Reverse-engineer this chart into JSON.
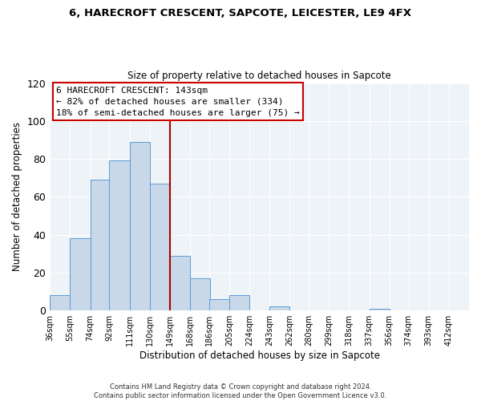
{
  "title": "6, HARECROFT CRESCENT, SAPCOTE, LEICESTER, LE9 4FX",
  "subtitle": "Size of property relative to detached houses in Sapcote",
  "xlabel": "Distribution of detached houses by size in Sapcote",
  "ylabel": "Number of detached properties",
  "bar_left_edges": [
    36,
    55,
    74,
    92,
    111,
    130,
    149,
    168,
    186,
    205,
    224,
    243,
    262,
    280,
    299,
    318,
    337,
    356,
    374,
    393
  ],
  "bar_heights": [
    8,
    38,
    69,
    79,
    89,
    67,
    29,
    17,
    6,
    8,
    0,
    2,
    0,
    0,
    0,
    0,
    1,
    0,
    0,
    0
  ],
  "bin_width": 19,
  "tick_labels": [
    "36sqm",
    "55sqm",
    "74sqm",
    "92sqm",
    "111sqm",
    "130sqm",
    "149sqm",
    "168sqm",
    "186sqm",
    "205sqm",
    "224sqm",
    "243sqm",
    "262sqm",
    "280sqm",
    "299sqm",
    "318sqm",
    "337sqm",
    "356sqm",
    "374sqm",
    "393sqm",
    "412sqm"
  ],
  "tick_positions": [
    36,
    55,
    74,
    92,
    111,
    130,
    149,
    168,
    186,
    205,
    224,
    243,
    262,
    280,
    299,
    318,
    337,
    356,
    374,
    393,
    412
  ],
  "bar_facecolor": "#c8d8e8",
  "bar_edgecolor": "#5b9bd5",
  "vline_color": "#aa0000",
  "vline_x": 149,
  "ylim": [
    0,
    120
  ],
  "yticks": [
    0,
    20,
    40,
    60,
    80,
    100,
    120
  ],
  "grid_color": "#c8d8e8",
  "bg_color": "#eef3f8",
  "annotation_text": "6 HARECROFT CRESCENT: 143sqm\n← 82% of detached houses are smaller (334)\n18% of semi-detached houses are larger (75) →",
  "annotation_box_edgecolor": "#cc0000",
  "footer_line1": "Contains HM Land Registry data © Crown copyright and database right 2024.",
  "footer_line2": "Contains public sector information licensed under the Open Government Licence v3.0."
}
